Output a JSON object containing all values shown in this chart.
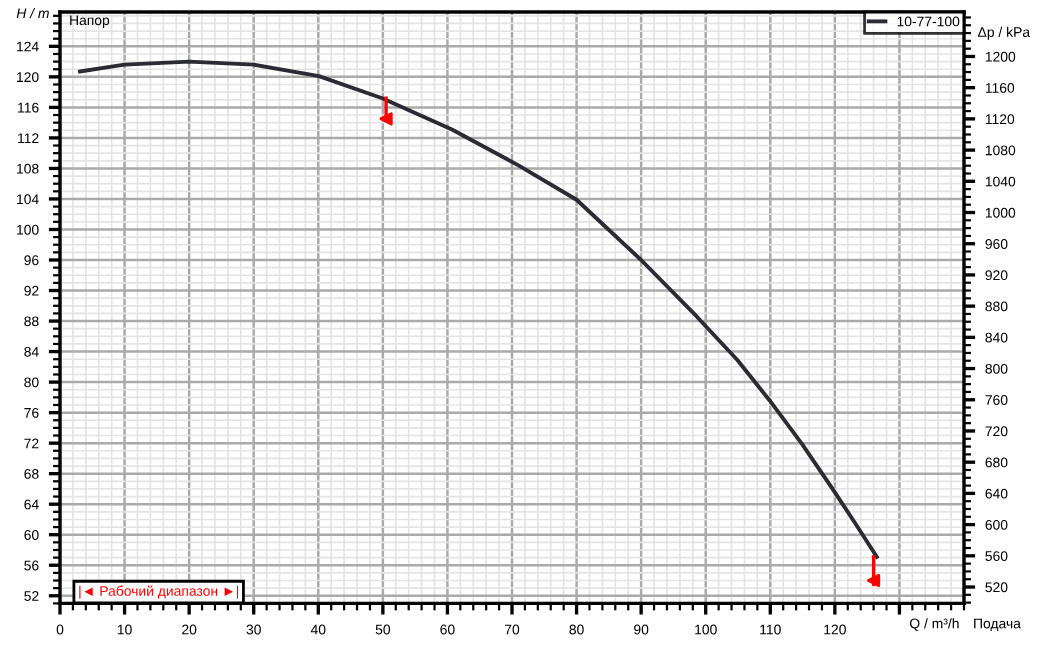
{
  "chart_data": {
    "type": "line",
    "xlabel": "Q / m³/h",
    "ylabel": "H / m",
    "y2label": "Δp / kPa",
    "annotations": [
      "Напор",
      "Подача",
      "|◄ Рабочий диапазон ►|"
    ],
    "series": [
      {
        "name": "10-77-100",
        "color": "#2b2b35",
        "x": [
          3.1,
          10,
          20,
          30,
          40.1,
          49.9,
          60.7,
          71,
          80,
          90,
          98.6,
          104.9,
          109.9,
          114.9,
          119.8,
          123,
          126.5
        ],
        "values": [
          120.7,
          121.6,
          122.0,
          121.6,
          120.1,
          117.2,
          113.1,
          108.4,
          103.9,
          96.0,
          88.6,
          82.9,
          77.6,
          71.9,
          65.8,
          61.7,
          57.1
        ]
      },
      {
        "type": "scatter",
        "color": "#ff0000",
        "marker": "triangle",
        "x": [
          50.5,
          126
        ],
        "values": [
          114.5,
          54
        ],
        "errors": [
          [
            114.5,
            117.2
          ],
          [
            53.5,
            57.1
          ]
        ]
      }
    ],
    "xlim": [
      0,
      140
    ],
    "ylim": [
      51,
      128.5
    ],
    "y2lim": [
      499,
      1257
    ],
    "xticks": [
      0,
      10,
      20,
      30,
      40,
      50,
      60,
      70,
      80,
      90,
      100,
      110,
      120,
      {
        "value": 130,
        "label": null
      }
    ],
    "yticks": [
      52,
      56,
      60,
      64,
      68,
      72,
      76,
      80,
      84,
      88,
      92,
      96,
      100,
      104,
      108,
      112,
      116,
      120,
      124
    ],
    "y2ticks": [
      520,
      560,
      600,
      640,
      680,
      720,
      760,
      800,
      840,
      880,
      920,
      960,
      1000,
      1040,
      1080,
      1120,
      1160,
      1200
    ],
    "grid": true,
    "legend": "top right",
    "marker": "none",
    "line_style": "solid"
  }
}
